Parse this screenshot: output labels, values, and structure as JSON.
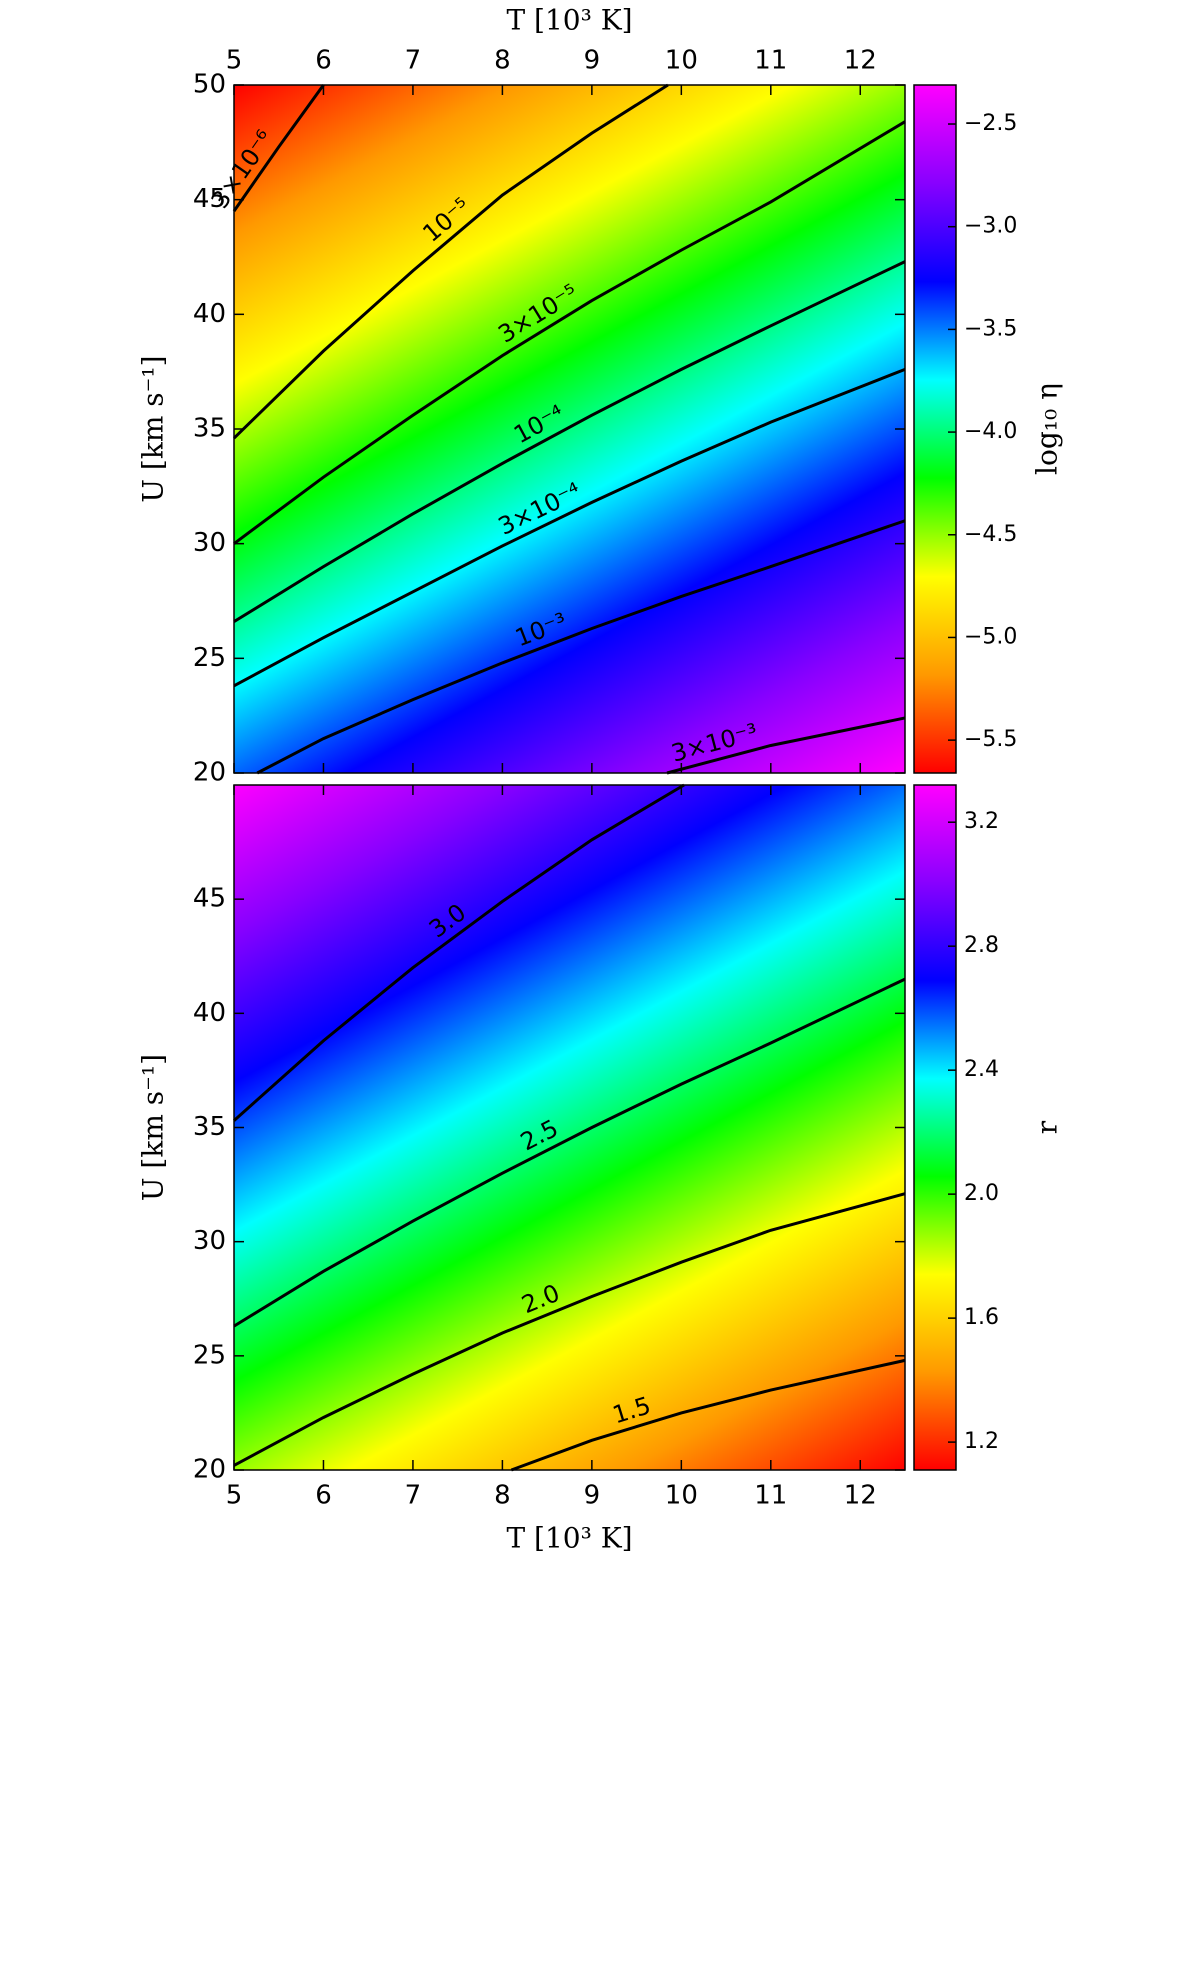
{
  "chart_data": [
    {
      "type": "contour",
      "xlabel": "T [10³ K]",
      "xaxis_position": "top",
      "ylabel": "U [km s⁻¹]",
      "xlim": [
        5,
        12.5
      ],
      "ylim": [
        20,
        50
      ],
      "xticks": [
        5,
        6,
        7,
        8,
        9,
        10,
        11,
        12
      ],
      "yticks": [
        20,
        25,
        30,
        35,
        40,
        45,
        50
      ],
      "colorbar_label": "log₁₀ η",
      "clim": [
        -5.66,
        -2.31
      ],
      "cticks": [
        {
          "value": -5.5,
          "label": "−5.5"
        },
        {
          "value": -5.0,
          "label": "−5.0"
        },
        {
          "value": -4.5,
          "label": "−4.5"
        },
        {
          "value": -4.0,
          "label": "−4.0"
        },
        {
          "value": -3.5,
          "label": "−3.5"
        },
        {
          "value": -3.0,
          "label": "−3.0"
        },
        {
          "value": -2.5,
          "label": "−2.5"
        }
      ],
      "colormap": [
        "#ff0000",
        "#ff9900",
        "#ffff00",
        "#00ff00",
        "#00ffff",
        "#0000ff",
        "#8800ff",
        "#ff00ff"
      ],
      "low_corner": "top-left",
      "contours": [
        {
          "level": 3e-06,
          "label": "3×10⁻⁶",
          "x": [
            5,
            5.5,
            6.0
          ],
          "y": [
            44.5,
            47.3,
            50
          ]
        },
        {
          "level": 1e-05,
          "label": "10⁻⁵",
          "x": [
            5,
            6,
            7,
            8,
            9,
            9.85
          ],
          "y": [
            34.6,
            38.4,
            41.9,
            45.2,
            47.9,
            50
          ]
        },
        {
          "level": 3e-05,
          "label": "3×10⁻⁵",
          "x": [
            5,
            6,
            7,
            8,
            9,
            10,
            11,
            12.5
          ],
          "y": [
            30.0,
            32.9,
            35.6,
            38.2,
            40.6,
            42.8,
            44.9,
            48.4
          ]
        },
        {
          "level": 0.0001,
          "label": "10⁻⁴",
          "x": [
            5,
            6,
            7,
            8,
            9,
            10,
            11,
            12.5
          ],
          "y": [
            26.6,
            29.0,
            31.3,
            33.5,
            35.6,
            37.6,
            39.5,
            42.3
          ]
        },
        {
          "level": 0.0003,
          "label": "3×10⁻⁴",
          "x": [
            5,
            6,
            7,
            8,
            9,
            10,
            11,
            12.5
          ],
          "y": [
            23.8,
            25.9,
            27.9,
            29.9,
            31.8,
            33.6,
            35.3,
            37.6
          ]
        },
        {
          "level": 0.001,
          "label": "10⁻³",
          "x": [
            5.26,
            6,
            7,
            8,
            9,
            10,
            11,
            12.5
          ],
          "y": [
            20,
            21.5,
            23.2,
            24.8,
            26.3,
            27.7,
            29.0,
            31.0
          ]
        },
        {
          "level": 0.003,
          "label": "3×10⁻³",
          "x": [
            9.84,
            11,
            12.5
          ],
          "y": [
            20,
            21.2,
            22.4
          ]
        }
      ]
    },
    {
      "type": "contour",
      "xlabel": "T [10³ K]",
      "xaxis_position": "bottom",
      "ylabel": "U [km s⁻¹]",
      "xlim": [
        5,
        12.5
      ],
      "ylim": [
        20,
        50
      ],
      "xticks": [
        5,
        6,
        7,
        8,
        9,
        10,
        11,
        12
      ],
      "yticks": [
        20,
        25,
        30,
        35,
        40,
        45
      ],
      "colorbar_label": "r",
      "clim": [
        1.11,
        3.32
      ],
      "cticks": [
        1.2,
        1.6,
        {
          "value": 2.0,
          "label": "2.0"
        },
        2.4,
        2.8,
        3.2
      ],
      "colormap": [
        "#ff0000",
        "#ff9900",
        "#ffff00",
        "#00ff00",
        "#00ffff",
        "#0000ff",
        "#8800ff",
        "#ff00ff"
      ],
      "low_corner": "bottom-right",
      "contours": [
        {
          "level": 3.0,
          "label": "3.0",
          "x": [
            5,
            6,
            7,
            8,
            9,
            10.03
          ],
          "y": [
            35.3,
            38.8,
            42.0,
            44.9,
            47.6,
            50
          ]
        },
        {
          "level": 2.5,
          "label": "2.5",
          "x": [
            5,
            6,
            7,
            8,
            9,
            10,
            11,
            12.5
          ],
          "y": [
            26.3,
            28.7,
            30.9,
            33.0,
            35.0,
            36.9,
            38.7,
            41.5
          ]
        },
        {
          "level": 2.0,
          "label": "2.0",
          "x": [
            5,
            6,
            7,
            8,
            9,
            10,
            11,
            12.5
          ],
          "y": [
            20.2,
            22.3,
            24.2,
            26.0,
            27.6,
            29.1,
            30.5,
            32.1
          ]
        },
        {
          "level": 1.5,
          "label": "1.5",
          "x": [
            8.1,
            9,
            10,
            11,
            12.5
          ],
          "y": [
            20,
            21.3,
            22.5,
            23.5,
            24.8
          ]
        }
      ]
    }
  ]
}
